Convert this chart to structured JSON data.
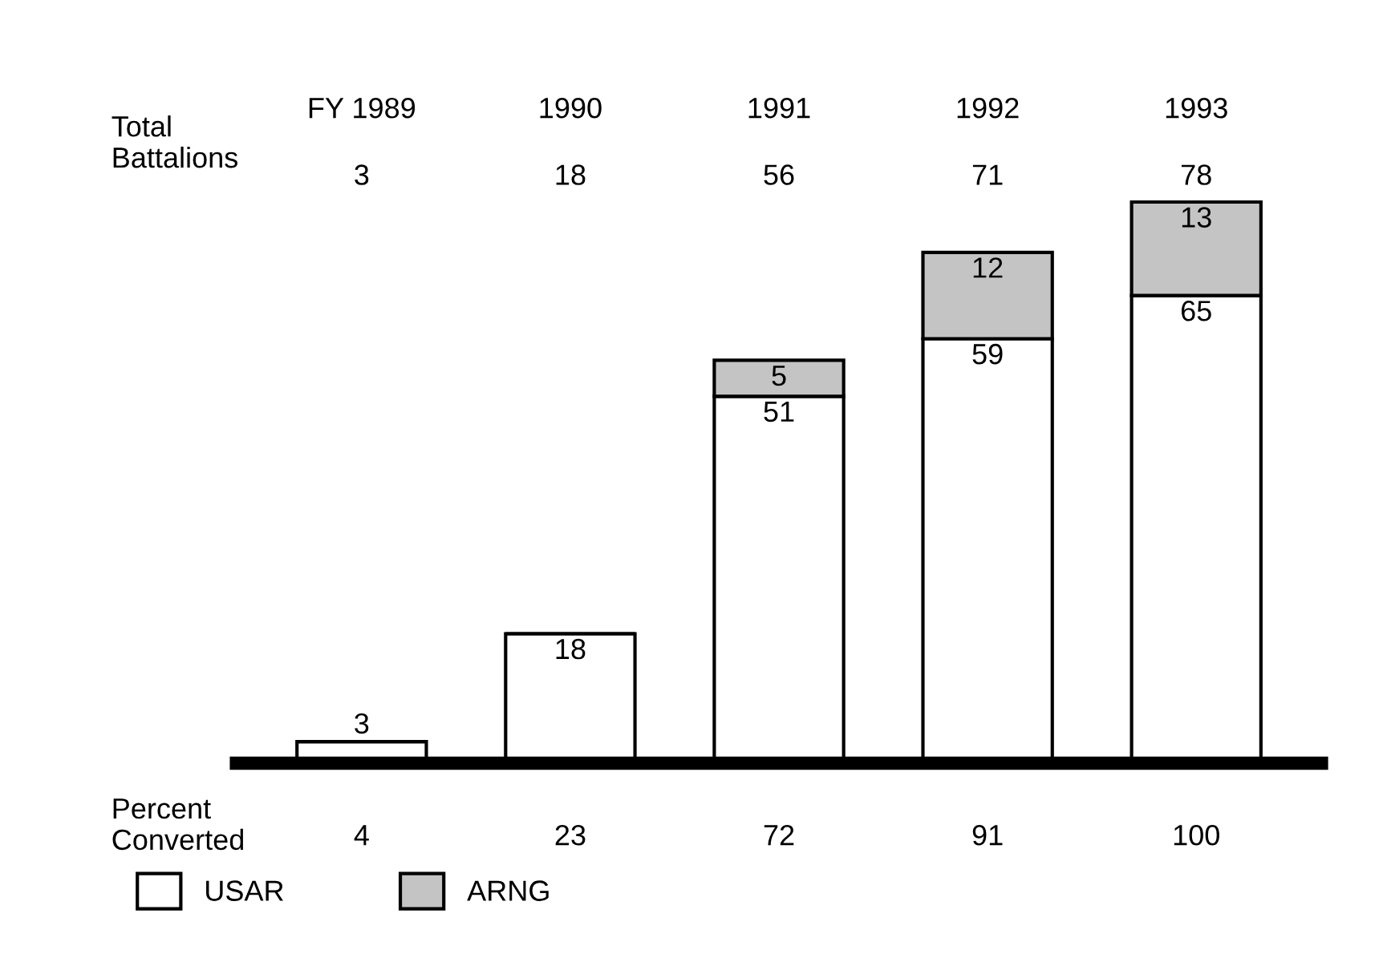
{
  "chart_data": {
    "type": "bar",
    "stacked": true,
    "data_labels": true,
    "legend": "bottom left",
    "categories": [
      "FY 1989",
      "1990",
      "1991",
      "1992",
      "1993"
    ],
    "series": [
      {
        "name": "USAR",
        "color": "#ffffff",
        "values": [
          3,
          18,
          51,
          59,
          65
        ]
      },
      {
        "name": "ARNG",
        "color": "#c4c4c4",
        "values": [
          null,
          null,
          5,
          12,
          13
        ]
      }
    ],
    "annotations": [
      "Total\nBattalions",
      "3",
      "18",
      "56",
      "71",
      "78",
      "Percent\nConverted",
      "4",
      "23",
      "72",
      "91",
      "100"
    ]
  }
}
